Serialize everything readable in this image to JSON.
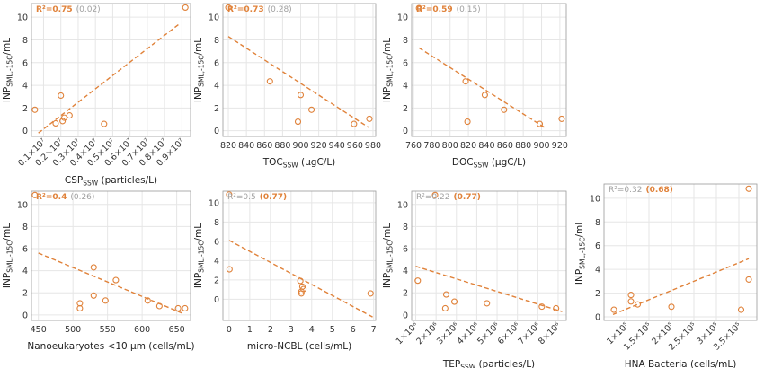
{
  "chart_data": [
    {
      "type": "scatter",
      "annotation": {
        "label": "R²=0.75",
        "value": "(0.02)",
        "label_bold": true,
        "value_bold": false
      },
      "xlabel": {
        "base": "CSP",
        "sub": "SSW",
        "rest": " (particles/L)"
      },
      "ylabel": {
        "base": "INP",
        "sub": "SML,-15C",
        "rest": "/mL"
      },
      "xlim": [
        0.03,
        0.95
      ],
      "ylim": [
        -0.5,
        11.2
      ],
      "xticks": [
        0.1,
        0.2,
        0.3,
        0.4,
        0.5,
        0.6,
        0.7,
        0.8,
        0.9
      ],
      "xtick_labels": [
        "0.1×10⁷",
        "0.2×10⁷",
        "0.3×10⁷",
        "0.4×10⁷",
        "0.5×10⁷",
        "0.6×10⁷",
        "0.7×10⁷",
        "0.8×10⁷",
        "0.9×10⁷"
      ],
      "xtick_rotate": true,
      "yticks": [
        0,
        2,
        4,
        6,
        8,
        10
      ],
      "points": [
        [
          0.05,
          1.85
        ],
        [
          0.17,
          0.65
        ],
        [
          0.2,
          3.1
        ],
        [
          0.21,
          0.85
        ],
        [
          0.22,
          1.15
        ],
        [
          0.25,
          1.35
        ],
        [
          0.45,
          0.6
        ],
        [
          0.92,
          10.85
        ]
      ],
      "trend": [
        [
          0.07,
          -0.2
        ],
        [
          0.88,
          9.35
        ]
      ]
    },
    {
      "type": "scatter",
      "annotation": {
        "label": "R²=0.73",
        "value": "(0.28)",
        "label_bold": true,
        "value_bold": false
      },
      "xlabel": {
        "base": "TOC",
        "sub": "SSW",
        "rest": " (μgC/L)"
      },
      "ylabel": {
        "base": "INP",
        "sub": "SML,-15C",
        "rest": "/mL"
      },
      "xlim": [
        814,
        983
      ],
      "ylim": [
        -0.5,
        11.2
      ],
      "xticks": [
        820,
        840,
        860,
        880,
        900,
        920,
        940,
        960,
        980
      ],
      "xtick_labels": [
        "820",
        "840",
        "860",
        "880",
        "900",
        "920",
        "940",
        "960",
        "980"
      ],
      "xtick_rotate": false,
      "yticks": [
        0,
        2,
        4,
        6,
        8,
        10
      ],
      "points": [
        [
          820,
          10.85
        ],
        [
          866,
          4.35
        ],
        [
          897,
          0.8
        ],
        [
          900,
          3.15
        ],
        [
          912,
          1.85
        ],
        [
          959,
          0.6
        ],
        [
          976,
          1.05
        ]
      ],
      "trend": [
        [
          820,
          8.3
        ],
        [
          975,
          0.3
        ]
      ]
    },
    {
      "type": "scatter",
      "annotation": {
        "label": "R²=0.59",
        "value": "(0.15)",
        "label_bold": true,
        "value_bold": false
      },
      "xlabel": {
        "base": "DOC",
        "sub": "SSW",
        "rest": " (μgC/L)"
      },
      "ylabel": {
        "base": "INP",
        "sub": "SML,-15C",
        "rest": "/mL"
      },
      "xlim": [
        758,
        927
      ],
      "ylim": [
        -0.5,
        11.2
      ],
      "xticks": [
        760,
        780,
        800,
        820,
        840,
        860,
        880,
        900,
        920
      ],
      "xtick_labels": [
        "760",
        "780",
        "800",
        "820",
        "840",
        "860",
        "880",
        "900",
        "920"
      ],
      "xtick_rotate": false,
      "yticks": [
        0,
        2,
        4,
        6,
        8,
        10
      ],
      "points": [
        [
          766,
          10.8
        ],
        [
          817,
          4.35
        ],
        [
          819,
          0.8
        ],
        [
          838,
          3.15
        ],
        [
          859,
          1.85
        ],
        [
          898,
          0.6
        ],
        [
          922,
          1.05
        ]
      ],
      "trend": [
        [
          766,
          7.3
        ],
        [
          905,
          0.2
        ]
      ]
    },
    {
      "type": "scatter",
      "annotation": {
        "label": "R²=0.4",
        "value": "(0.26)",
        "label_bold": true,
        "value_bold": false
      },
      "xlabel": {
        "base": "Nanoeukaryotes <10 μm (cells/mL)",
        "sub": "",
        "rest": ""
      },
      "ylabel": {
        "base": "INP",
        "sub": "SML,-15C",
        "rest": "/mL"
      },
      "xlim": [
        440,
        670
      ],
      "ylim": [
        -0.5,
        11.2
      ],
      "xticks": [
        450,
        500,
        550,
        600,
        650
      ],
      "xtick_labels": [
        "450",
        "500",
        "550",
        "600",
        "650"
      ],
      "xtick_rotate": false,
      "yticks": [
        0,
        2,
        4,
        6,
        8,
        10
      ],
      "points": [
        [
          445,
          10.85
        ],
        [
          510,
          1.05
        ],
        [
          510,
          0.6
        ],
        [
          530,
          4.3
        ],
        [
          530,
          1.75
        ],
        [
          547,
          1.3
        ],
        [
          562,
          3.15
        ],
        [
          608,
          1.3
        ],
        [
          625,
          0.8
        ],
        [
          652,
          0.6
        ],
        [
          662,
          0.6
        ]
      ],
      "trend": [
        [
          450,
          5.6
        ],
        [
          660,
          0.1
        ]
      ]
    },
    {
      "type": "scatter",
      "annotation": {
        "label": "R²=0.5",
        "value": "(0.77)",
        "label_bold": false,
        "value_bold": true
      },
      "xlabel": {
        "base": "micro-NCBL (cells/mL)",
        "sub": "",
        "rest": ""
      },
      "ylabel": {
        "base": "INP",
        "sub": "SML,-15C",
        "rest": "/mL"
      },
      "xlim": [
        -0.3,
        7.1
      ],
      "ylim": [
        -2.2,
        11.2
      ],
      "xticks": [
        0,
        1,
        2,
        3,
        4,
        5,
        6,
        7
      ],
      "xtick_labels": [
        "0",
        "1",
        "2",
        "3",
        "4",
        "5",
        "6",
        "7"
      ],
      "xtick_rotate": false,
      "yticks": [
        0,
        2,
        4,
        6,
        8,
        10
      ],
      "points": [
        [
          0,
          10.85
        ],
        [
          0.02,
          3.1
        ],
        [
          3.45,
          1.9
        ],
        [
          3.5,
          0.8
        ],
        [
          3.5,
          0.6
        ],
        [
          3.55,
          1.3
        ],
        [
          3.6,
          1.05
        ],
        [
          6.85,
          0.6
        ]
      ],
      "trend": [
        [
          0,
          6.1
        ],
        [
          7,
          -1.9
        ]
      ]
    },
    {
      "type": "scatter",
      "annotation": {
        "label": "R²=0.22",
        "value": "(0.77)",
        "label_bold": false,
        "value_bold": true
      },
      "xlabel": {
        "base": "TEP",
        "sub": "SSW",
        "rest": " (particles/L)"
      },
      "ylabel": {
        "base": "INP",
        "sub": "SML,-15C",
        "rest": "/mL"
      },
      "xlim": [
        0.8,
        8.4
      ],
      "ylim": [
        -0.5,
        11.2
      ],
      "xticks": [
        1,
        2,
        3,
        4,
        5,
        6,
        7,
        8
      ],
      "xtick_labels": [
        "1×10⁶",
        "2×10⁶",
        "3×10⁶",
        "4×10⁶",
        "5×10⁶",
        "6×10⁶",
        "7×10⁶",
        "8×10⁶"
      ],
      "xtick_rotate": true,
      "yticks": [
        0,
        2,
        4,
        6,
        8,
        10
      ],
      "points": [
        [
          1.95,
          10.85
        ],
        [
          1.1,
          3.1
        ],
        [
          2.5,
          1.85
        ],
        [
          2.45,
          0.6
        ],
        [
          2.9,
          1.2
        ],
        [
          4.5,
          1.05
        ],
        [
          7.2,
          0.75
        ],
        [
          7.9,
          0.6
        ]
      ],
      "trend": [
        [
          1,
          4.4
        ],
        [
          8.2,
          0.3
        ]
      ]
    },
    {
      "type": "scatter",
      "annotation": {
        "label": "R²=0.32",
        "value": "(0.68)",
        "label_bold": false,
        "value_bold": true
      },
      "xlabel": {
        "base": "HNA Bacteria (cells/mL)",
        "sub": "",
        "rest": ""
      },
      "ylabel": {
        "base": "INP",
        "sub": "SML,-15C",
        "rest": "/mL"
      },
      "xlim": [
        0.5,
        3.9
      ],
      "ylim": [
        -0.3,
        11.2
      ],
      "xticks": [
        1,
        1.5,
        2,
        2.5,
        3,
        3.5
      ],
      "xtick_labels": [
        "1×10⁵",
        "1.5×10⁵",
        "2×10⁵",
        "2.5×10⁵",
        "3×10⁵",
        "3.5×10⁵"
      ],
      "xtick_rotate": true,
      "yticks": [
        0,
        2,
        4,
        6,
        8,
        10
      ],
      "points": [
        [
          0.72,
          0.6
        ],
        [
          1.1,
          1.85
        ],
        [
          1.1,
          1.3
        ],
        [
          1.25,
          1.05
        ],
        [
          2.0,
          0.85
        ],
        [
          3.55,
          0.6
        ],
        [
          3.72,
          3.15
        ],
        [
          3.72,
          10.8
        ]
      ],
      "trend": [
        [
          0.7,
          0.2
        ],
        [
          3.72,
          4.9
        ]
      ]
    }
  ],
  "colors": {
    "accent": "#e0823a",
    "annotation_gray": "#a0a0a0",
    "text": "#222222"
  }
}
